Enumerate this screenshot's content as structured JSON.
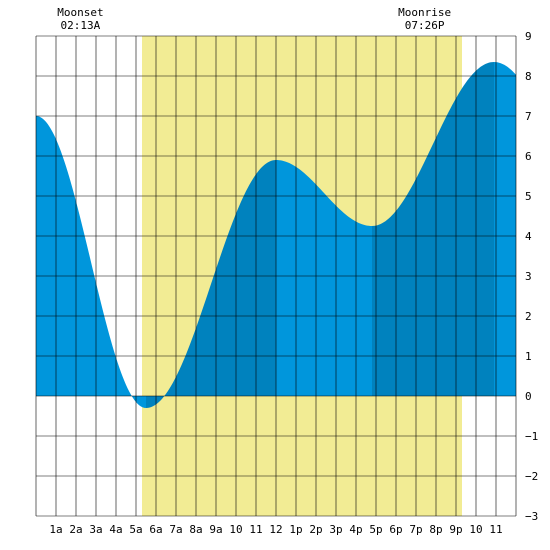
{
  "chart_data": {
    "type": "area",
    "title": "",
    "xlabel": "",
    "ylabel": "",
    "x_ticks": [
      {
        "hour": 1,
        "label": "1a"
      },
      {
        "hour": 2,
        "label": "2a"
      },
      {
        "hour": 3,
        "label": "3a"
      },
      {
        "hour": 4,
        "label": "4a"
      },
      {
        "hour": 5,
        "label": "5a"
      },
      {
        "hour": 6,
        "label": "6a"
      },
      {
        "hour": 7,
        "label": "7a"
      },
      {
        "hour": 8,
        "label": "8a"
      },
      {
        "hour": 9,
        "label": "9a"
      },
      {
        "hour": 10,
        "label": "10"
      },
      {
        "hour": 11,
        "label": "11"
      },
      {
        "hour": 12,
        "label": "12"
      },
      {
        "hour": 13,
        "label": "1p"
      },
      {
        "hour": 14,
        "label": "2p"
      },
      {
        "hour": 15,
        "label": "3p"
      },
      {
        "hour": 16,
        "label": "4p"
      },
      {
        "hour": 17,
        "label": "5p"
      },
      {
        "hour": 18,
        "label": "6p"
      },
      {
        "hour": 19,
        "label": "7p"
      },
      {
        "hour": 20,
        "label": "8p"
      },
      {
        "hour": 21,
        "label": "9p"
      },
      {
        "hour": 22,
        "label": "10"
      },
      {
        "hour": 23,
        "label": "11"
      }
    ],
    "y_ticks": [
      9,
      8,
      7,
      6,
      5,
      4,
      3,
      2,
      1,
      0,
      -1,
      -2,
      -3
    ],
    "y_tick_labels": [
      "9",
      "8",
      "7",
      "6",
      "5",
      "4",
      "3",
      "2",
      "1",
      "0",
      "−1",
      "−2",
      "−3"
    ],
    "xlim": [
      0,
      24
    ],
    "ylim": [
      -3,
      9
    ],
    "grid": true,
    "daylight": {
      "start_hour": 5.3,
      "end_hour": 21.3
    },
    "tide_extremes": [
      {
        "hour": 0,
        "height": 7.0
      },
      {
        "hour": 5.5,
        "height": -0.3
      },
      {
        "hour": 12.0,
        "height": 5.9
      },
      {
        "hour": 16.8,
        "height": 4.25
      },
      {
        "hour": 22.9,
        "height": 8.35
      }
    ],
    "shade_breaks_hours": [
      5.5,
      12.0,
      16.8,
      22.9
    ],
    "moon_events": [
      {
        "label": "Moonset",
        "time": "02:13A",
        "hour": 2.22
      },
      {
        "label": "Moonrise",
        "time": "07:26P",
        "hour": 19.43
      }
    ],
    "colors": {
      "daylight": "#f2ec94",
      "tide_light": "#0096dc",
      "tide_dark": "#0082be",
      "grid": "#000000"
    }
  }
}
